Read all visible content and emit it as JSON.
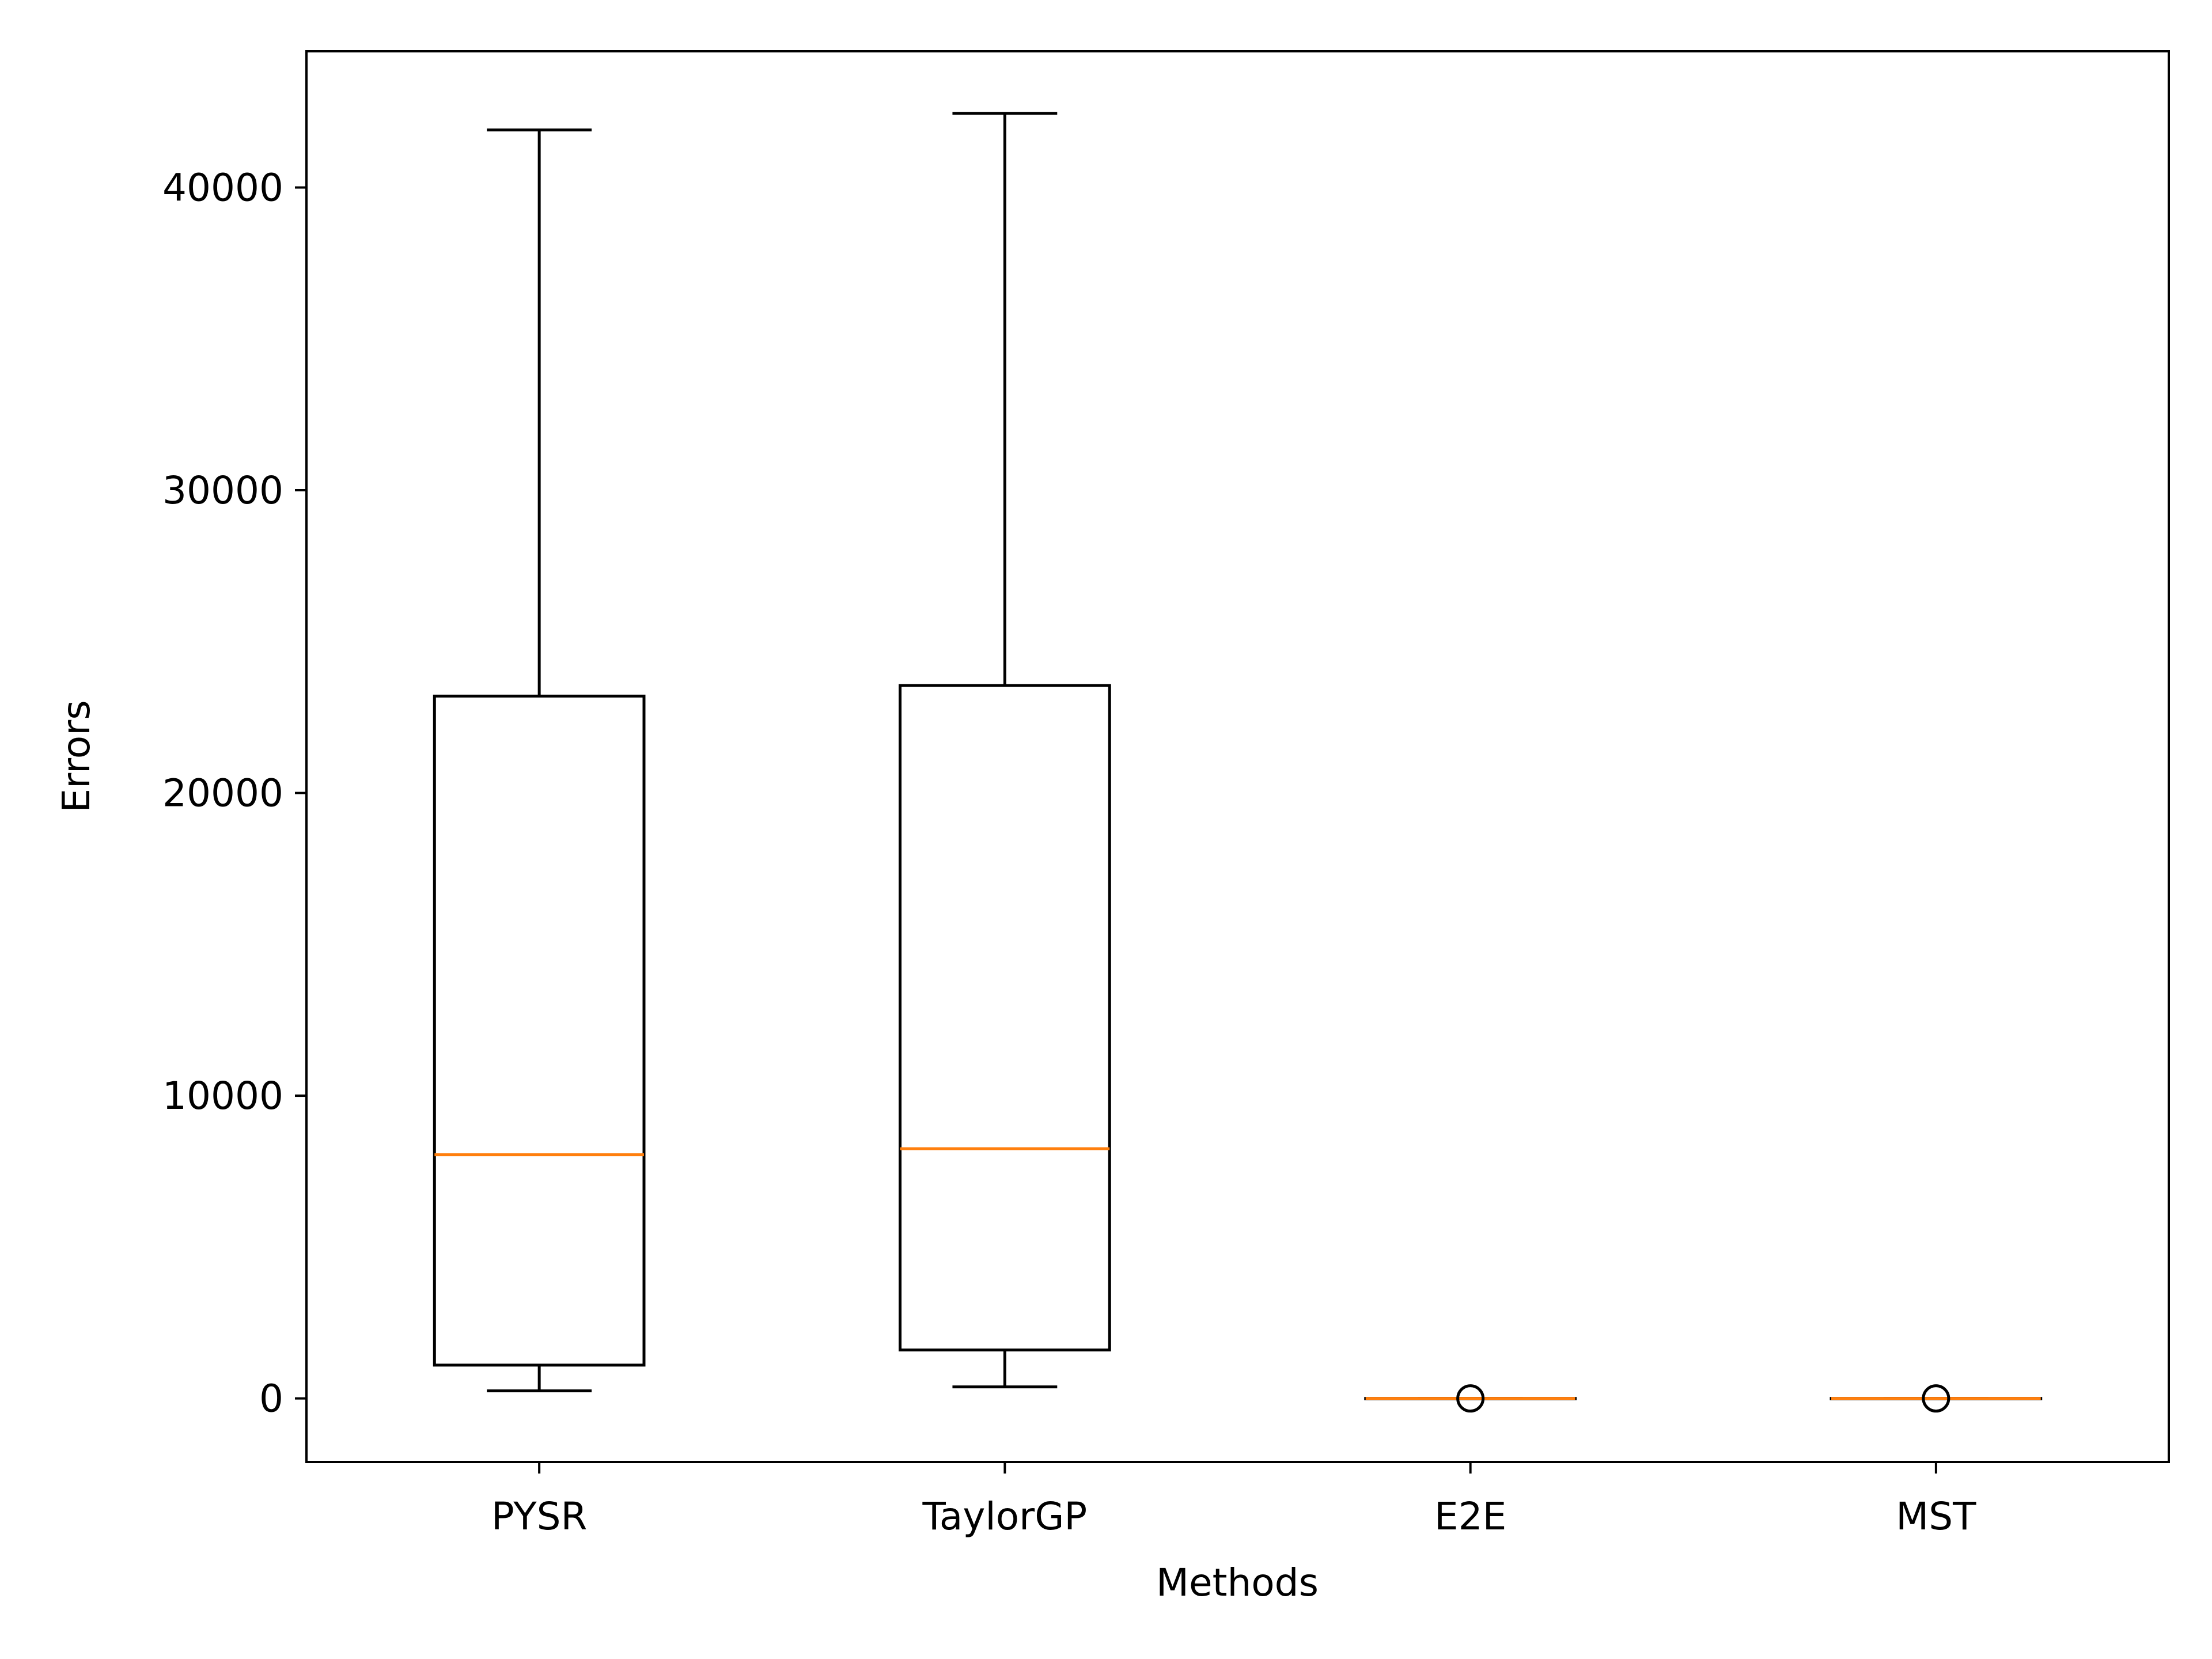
{
  "chart_data": {
    "type": "box",
    "title": "",
    "xlabel": "Methods",
    "ylabel": "Errors",
    "categories": [
      "PYSR",
      "TaylorGP",
      "E2E",
      "MST"
    ],
    "ylim": [
      -2100,
      44500
    ],
    "yticks": [
      0,
      10000,
      20000,
      30000,
      40000
    ],
    "yticklabels": [
      "0",
      "10000",
      "20000",
      "30000",
      "40000"
    ],
    "grid": false,
    "boxes": [
      {
        "name": "PYSR",
        "whisker_low": 250,
        "q1": 1100,
        "median": 8050,
        "q3": 23200,
        "whisker_high": 41900,
        "outliers": []
      },
      {
        "name": "TaylorGP",
        "whisker_low": 380,
        "q1": 1600,
        "median": 8250,
        "q3": 23550,
        "whisker_high": 42450,
        "outliers": []
      },
      {
        "name": "E2E",
        "whisker_low": 0,
        "q1": 0,
        "median": 0,
        "q3": 0,
        "whisker_high": 0,
        "outliers": [
          0
        ]
      },
      {
        "name": "MST",
        "whisker_low": 0,
        "q1": 0,
        "median": 0,
        "q3": 0,
        "whisker_high": 0,
        "outliers": [
          0
        ]
      }
    ],
    "colors": {
      "box": "#000000",
      "median": "#ff7f0e",
      "outlier": "#000000"
    }
  }
}
